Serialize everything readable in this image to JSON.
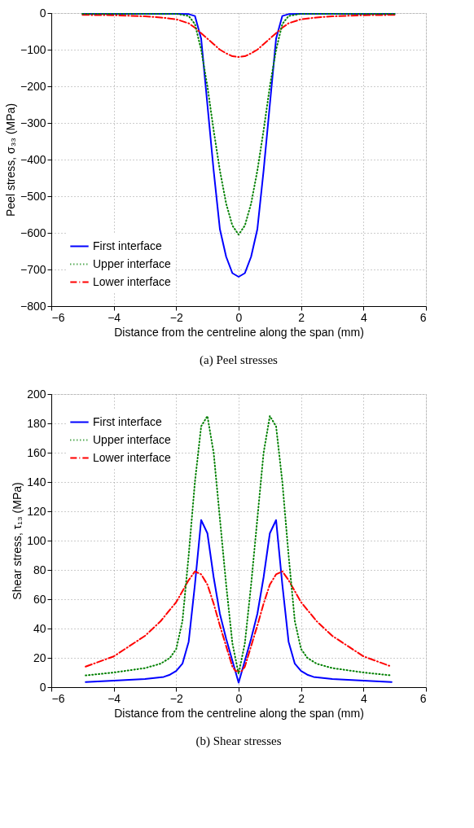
{
  "chart_data": [
    {
      "type": "line",
      "title": "(a)    Peel stresses",
      "xlabel": "Distance from the centreline along the span (mm)",
      "ylabel": "Peel stress, σ₃₃ (MPa)",
      "xlim": [
        -6,
        6
      ],
      "xticks": [
        -6,
        -4,
        -2,
        0,
        2,
        4,
        6
      ],
      "ylim": [
        -800,
        0
      ],
      "yticks": [
        -800,
        -700,
        -600,
        -500,
        -400,
        -300,
        -200,
        -100,
        0
      ],
      "grid": true,
      "legend": "bottom left",
      "series": [
        {
          "name": "First interface",
          "color": "#0000ff",
          "line_style": "solid",
          "x": [
            -5,
            -2,
            -1.6,
            -1.4,
            -1.2,
            -1.0,
            -0.8,
            -0.6,
            -0.4,
            -0.2,
            0,
            0.2,
            0.4,
            0.6,
            0.8,
            1.0,
            1.2,
            1.4,
            1.6,
            2,
            5
          ],
          "values": [
            -2,
            -2,
            -3,
            -8,
            -70,
            -250,
            -430,
            -590,
            -665,
            -710,
            -720,
            -710,
            -665,
            -590,
            -430,
            -250,
            -70,
            -8,
            -3,
            -2,
            -2
          ]
        },
        {
          "name": "Upper interface",
          "color": "#008000",
          "line_style": "dotted",
          "x": [
            -5,
            -2,
            -1.6,
            -1.4,
            -1.2,
            -1.0,
            -0.8,
            -0.6,
            -0.4,
            -0.2,
            0,
            0.2,
            0.4,
            0.6,
            0.8,
            1.0,
            1.2,
            1.4,
            1.6,
            2,
            5
          ],
          "values": [
            -2,
            -2,
            -8,
            -30,
            -100,
            -200,
            -320,
            -430,
            -520,
            -580,
            -605,
            -580,
            -520,
            -430,
            -320,
            -200,
            -100,
            -30,
            -8,
            -2,
            -2
          ]
        },
        {
          "name": "Lower interface",
          "color": "#ff0000",
          "line_style": "dashdot",
          "x": [
            -5,
            -4,
            -3,
            -2.5,
            -2,
            -1.6,
            -1.4,
            -1.2,
            -1.0,
            -0.8,
            -0.6,
            -0.4,
            -0.2,
            0,
            0.2,
            0.4,
            0.6,
            0.8,
            1.0,
            1.2,
            1.4,
            1.6,
            2,
            2.5,
            3,
            4,
            5
          ],
          "values": [
            -5,
            -6,
            -9,
            -12,
            -17,
            -28,
            -40,
            -55,
            -70,
            -85,
            -100,
            -110,
            -118,
            -120,
            -118,
            -110,
            -100,
            -85,
            -70,
            -55,
            -40,
            -28,
            -17,
            -12,
            -9,
            -6,
            -5
          ]
        }
      ]
    },
    {
      "type": "line",
      "title": "(b) Shear stresses",
      "xlabel": "Distance from the centreline along the span (mm)",
      "ylabel": "Shear stress, τ₁₃ (MPa)",
      "xlim": [
        -6,
        6
      ],
      "xticks": [
        -6,
        -4,
        -2,
        0,
        2,
        4,
        6
      ],
      "ylim": [
        0,
        200
      ],
      "yticks": [
        0,
        20,
        40,
        60,
        80,
        100,
        120,
        140,
        160,
        180,
        200
      ],
      "grid": true,
      "legend": "top left",
      "series": [
        {
          "name": "First interface",
          "color": "#0000ff",
          "line_style": "solid",
          "x": [
            -4.9,
            -4,
            -3,
            -2.4,
            -2.2,
            -2,
            -1.8,
            -1.6,
            -1.4,
            -1.2,
            -1.0,
            -0.8,
            -0.6,
            -0.4,
            -0.2,
            0,
            0.2,
            0.4,
            0.6,
            0.8,
            1.0,
            1.2,
            1.4,
            1.6,
            1.8,
            2,
            2.2,
            2.4,
            3,
            4,
            4.9
          ],
          "values": [
            3.5,
            4.5,
            5.5,
            7,
            8.5,
            11,
            16,
            31,
            70,
            114,
            105,
            75,
            50,
            33,
            18,
            3,
            18,
            33,
            50,
            75,
            105,
            114,
            70,
            31,
            16,
            11,
            8.5,
            7,
            5.5,
            4.5,
            3.5
          ]
        },
        {
          "name": "Upper interface",
          "color": "#008000",
          "line_style": "dotted",
          "x": [
            -4.9,
            -4,
            -3,
            -2.5,
            -2.2,
            -2,
            -1.8,
            -1.6,
            -1.4,
            -1.2,
            -1.0,
            -0.8,
            -0.6,
            -0.4,
            -0.2,
            0,
            0.2,
            0.4,
            0.6,
            0.8,
            1.0,
            1.2,
            1.4,
            1.6,
            1.8,
            2,
            2.2,
            2.5,
            3,
            4,
            4.9
          ],
          "values": [
            8,
            10,
            13,
            16,
            20,
            26,
            45,
            90,
            140,
            178,
            185,
            160,
            115,
            70,
            30,
            9,
            30,
            70,
            115,
            160,
            185,
            178,
            140,
            90,
            45,
            26,
            20,
            16,
            13,
            10,
            8
          ]
        },
        {
          "name": "Lower interface",
          "color": "#ff0000",
          "line_style": "dashdot",
          "x": [
            -4.9,
            -4,
            -3,
            -2.5,
            -2,
            -1.6,
            -1.4,
            -1.2,
            -1.0,
            -0.8,
            -0.6,
            -0.4,
            -0.2,
            -0.1,
            0.1,
            0.2,
            0.4,
            0.6,
            0.8,
            1.0,
            1.2,
            1.4,
            1.6,
            2,
            2.5,
            3,
            4,
            4.9
          ],
          "values": [
            14,
            21,
            35,
            45,
            58,
            73,
            79,
            77,
            70,
            57,
            42,
            28,
            14,
            11,
            11,
            14,
            28,
            42,
            57,
            70,
            77,
            79,
            73,
            58,
            45,
            35,
            21,
            14
          ]
        }
      ]
    }
  ]
}
